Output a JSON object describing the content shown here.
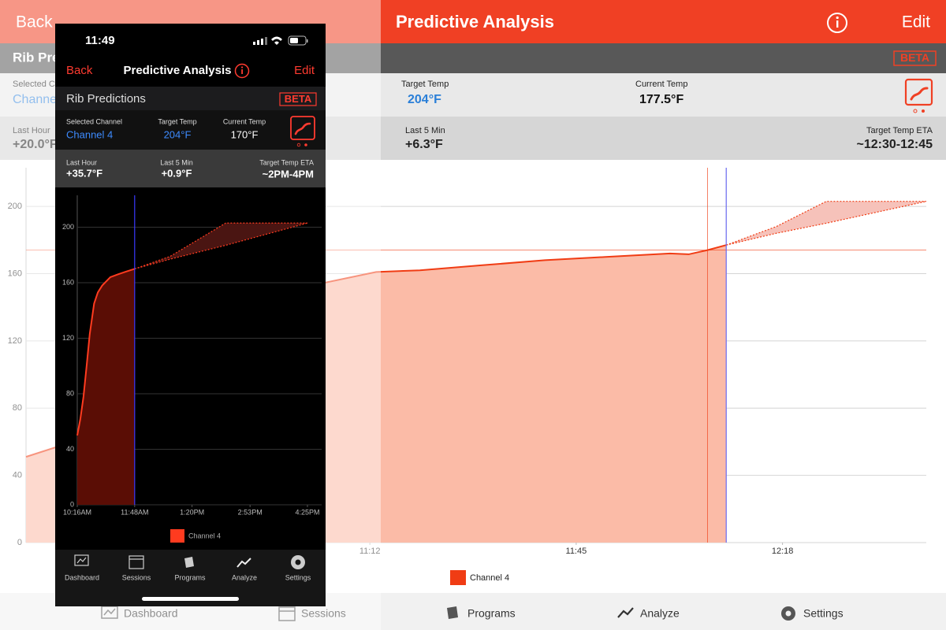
{
  "tablet": {
    "header": {
      "back": "Back",
      "title": "Predictive Analysis",
      "edit": "Edit"
    },
    "section_title": "Rib Predictions",
    "badge": "BETA",
    "stats": [
      {
        "label": "Selected Channel",
        "value": "Channel 4"
      },
      {
        "label": "Target Temp",
        "value": "204°F"
      },
      {
        "label": "Current Temp",
        "value": "177.5°F"
      },
      {
        "label": "Last Hour",
        "value": "+20.0°F"
      },
      {
        "label": "Last 5 Min",
        "value": "+6.3°F"
      },
      {
        "label": "Target Temp ETA",
        "value": "~12:30-12:45"
      }
    ],
    "chart": {
      "type": "area",
      "x": [
        "10:17",
        "10:22",
        "11:04",
        "11:13",
        "11:20",
        "11:30",
        "11:40",
        "11:50",
        "12:00",
        "12:03",
        "12:06",
        "12:09"
      ],
      "values": [
        51,
        57,
        154,
        161,
        162,
        165,
        168,
        170,
        172,
        171.5,
        174,
        177
      ],
      "color": "#f03c14",
      "fill": "#fbbba7",
      "xlim": [
        "10:17",
        "12:41"
      ],
      "xticks": [
        "11:12",
        "11:45",
        "12:18"
      ],
      "ylim": [
        0,
        223
      ],
      "yticks": [
        0,
        40,
        80,
        120,
        160,
        200
      ],
      "grid": true,
      "prediction": {
        "x": [
          "12:09",
          "12:17",
          "12:25",
          "12:41"
        ],
        "upper": [
          177,
          188,
          203,
          203
        ],
        "lower": [
          177,
          184,
          190,
          203
        ],
        "fill": "#f6c2ba"
      },
      "now_line": "12:09",
      "reference_time_line": "12:06",
      "reference_temp_line": 174,
      "legend": "Channel 4"
    },
    "tabs": [
      "Dashboard",
      "Sessions",
      "Programs",
      "Analyze",
      "Settings"
    ]
  },
  "phone": {
    "status_time": "11:49",
    "header": {
      "back": "Back",
      "title": "Predictive Analysis",
      "edit": "Edit"
    },
    "section_title": "Rib Predictions",
    "badge": "BETA",
    "stats": [
      {
        "label": "Selected Channel",
        "value": "Channel 4"
      },
      {
        "label": "Target Temp",
        "value": "204°F"
      },
      {
        "label": "Current Temp",
        "value": "170°F"
      },
      {
        "label": "Last Hour",
        "value": "+35.7°F"
      },
      {
        "label": "Last 5 Min",
        "value": "+0.9°F"
      },
      {
        "label": "Target Temp ETA",
        "value": "~2PM-4PM"
      }
    ],
    "chart": {
      "type": "area",
      "x": [
        "10:16AM",
        "10:21AM",
        "10:26AM",
        "10:31AM",
        "10:36AM",
        "10:43AM",
        "10:49AM",
        "10:56AM",
        "11:09AM",
        "11:21AM",
        "11:34AM",
        "11:48AM"
      ],
      "values": [
        50,
        62,
        78,
        100,
        123,
        145,
        153,
        158,
        164,
        166,
        168,
        170
      ],
      "color": "#ff3b1f",
      "fill": "#5a0d05",
      "xlim": [
        "10:16AM",
        "4:25PM"
      ],
      "xticks": [
        "10:16AM",
        "11:48AM",
        "1:20PM",
        "2:53PM",
        "4:25PM"
      ],
      "ylim": [
        0,
        223
      ],
      "yticks": [
        0,
        40,
        80,
        120,
        160,
        200
      ],
      "grid": true,
      "prediction": {
        "x": [
          "11:48AM",
          "12:45PM",
          "2:14PM",
          "4:25PM"
        ],
        "upper": [
          170,
          179,
          203,
          203
        ],
        "lower": [
          170,
          177,
          187,
          203
        ],
        "fill": "#4a1512"
      },
      "now_line": "11:48AM",
      "legend": "Channel 4"
    },
    "tabs": [
      "Dashboard",
      "Sessions",
      "Programs",
      "Analyze",
      "Settings"
    ]
  }
}
